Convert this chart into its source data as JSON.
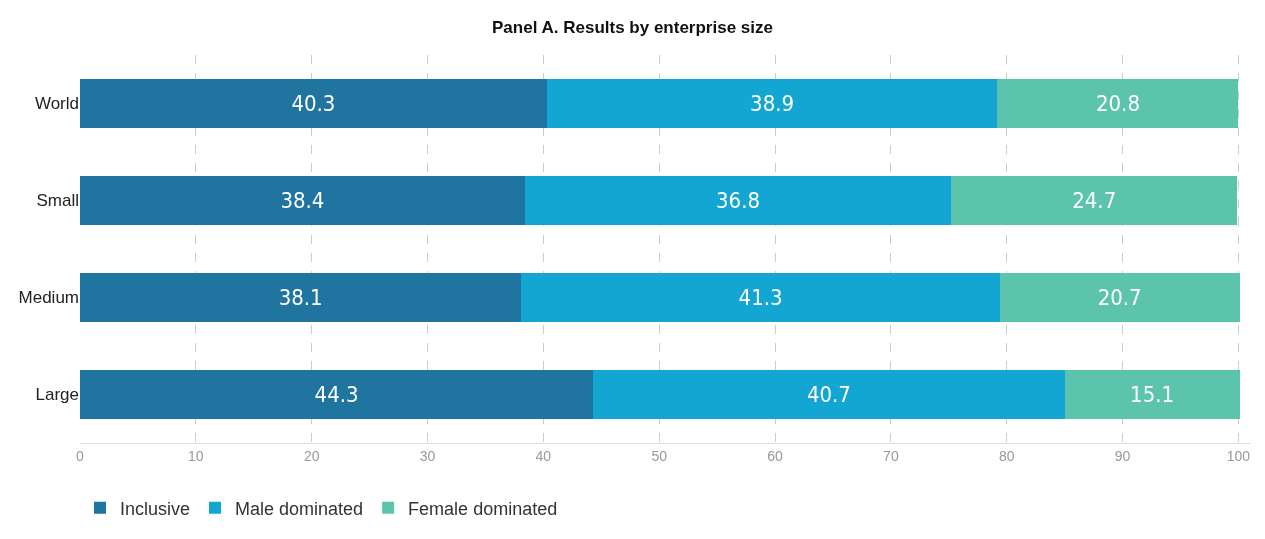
{
  "chart_data": {
    "type": "bar",
    "title": "Panel A. Results by enterprise size",
    "orientation": "horizontal",
    "stacked": true,
    "categories": [
      "World",
      "Small",
      "Medium",
      "Large"
    ],
    "series": [
      {
        "name": "Inclusive",
        "color": "#1f74a0",
        "values": [
          40.3,
          38.4,
          38.1,
          44.3
        ]
      },
      {
        "name": "Male dominated",
        "color": "#13a6d2",
        "values": [
          38.9,
          36.8,
          41.3,
          40.7
        ]
      },
      {
        "name": "Female dominated",
        "color": "#5cc4ad",
        "values": [
          20.8,
          24.7,
          20.7,
          15.1
        ]
      }
    ],
    "xlim": [
      0,
      101
    ],
    "xticks": [
      0,
      10,
      20,
      30,
      40,
      50,
      60,
      70,
      80,
      90,
      100
    ],
    "grid": "x",
    "legend": "bottom left",
    "data_labels": true
  }
}
